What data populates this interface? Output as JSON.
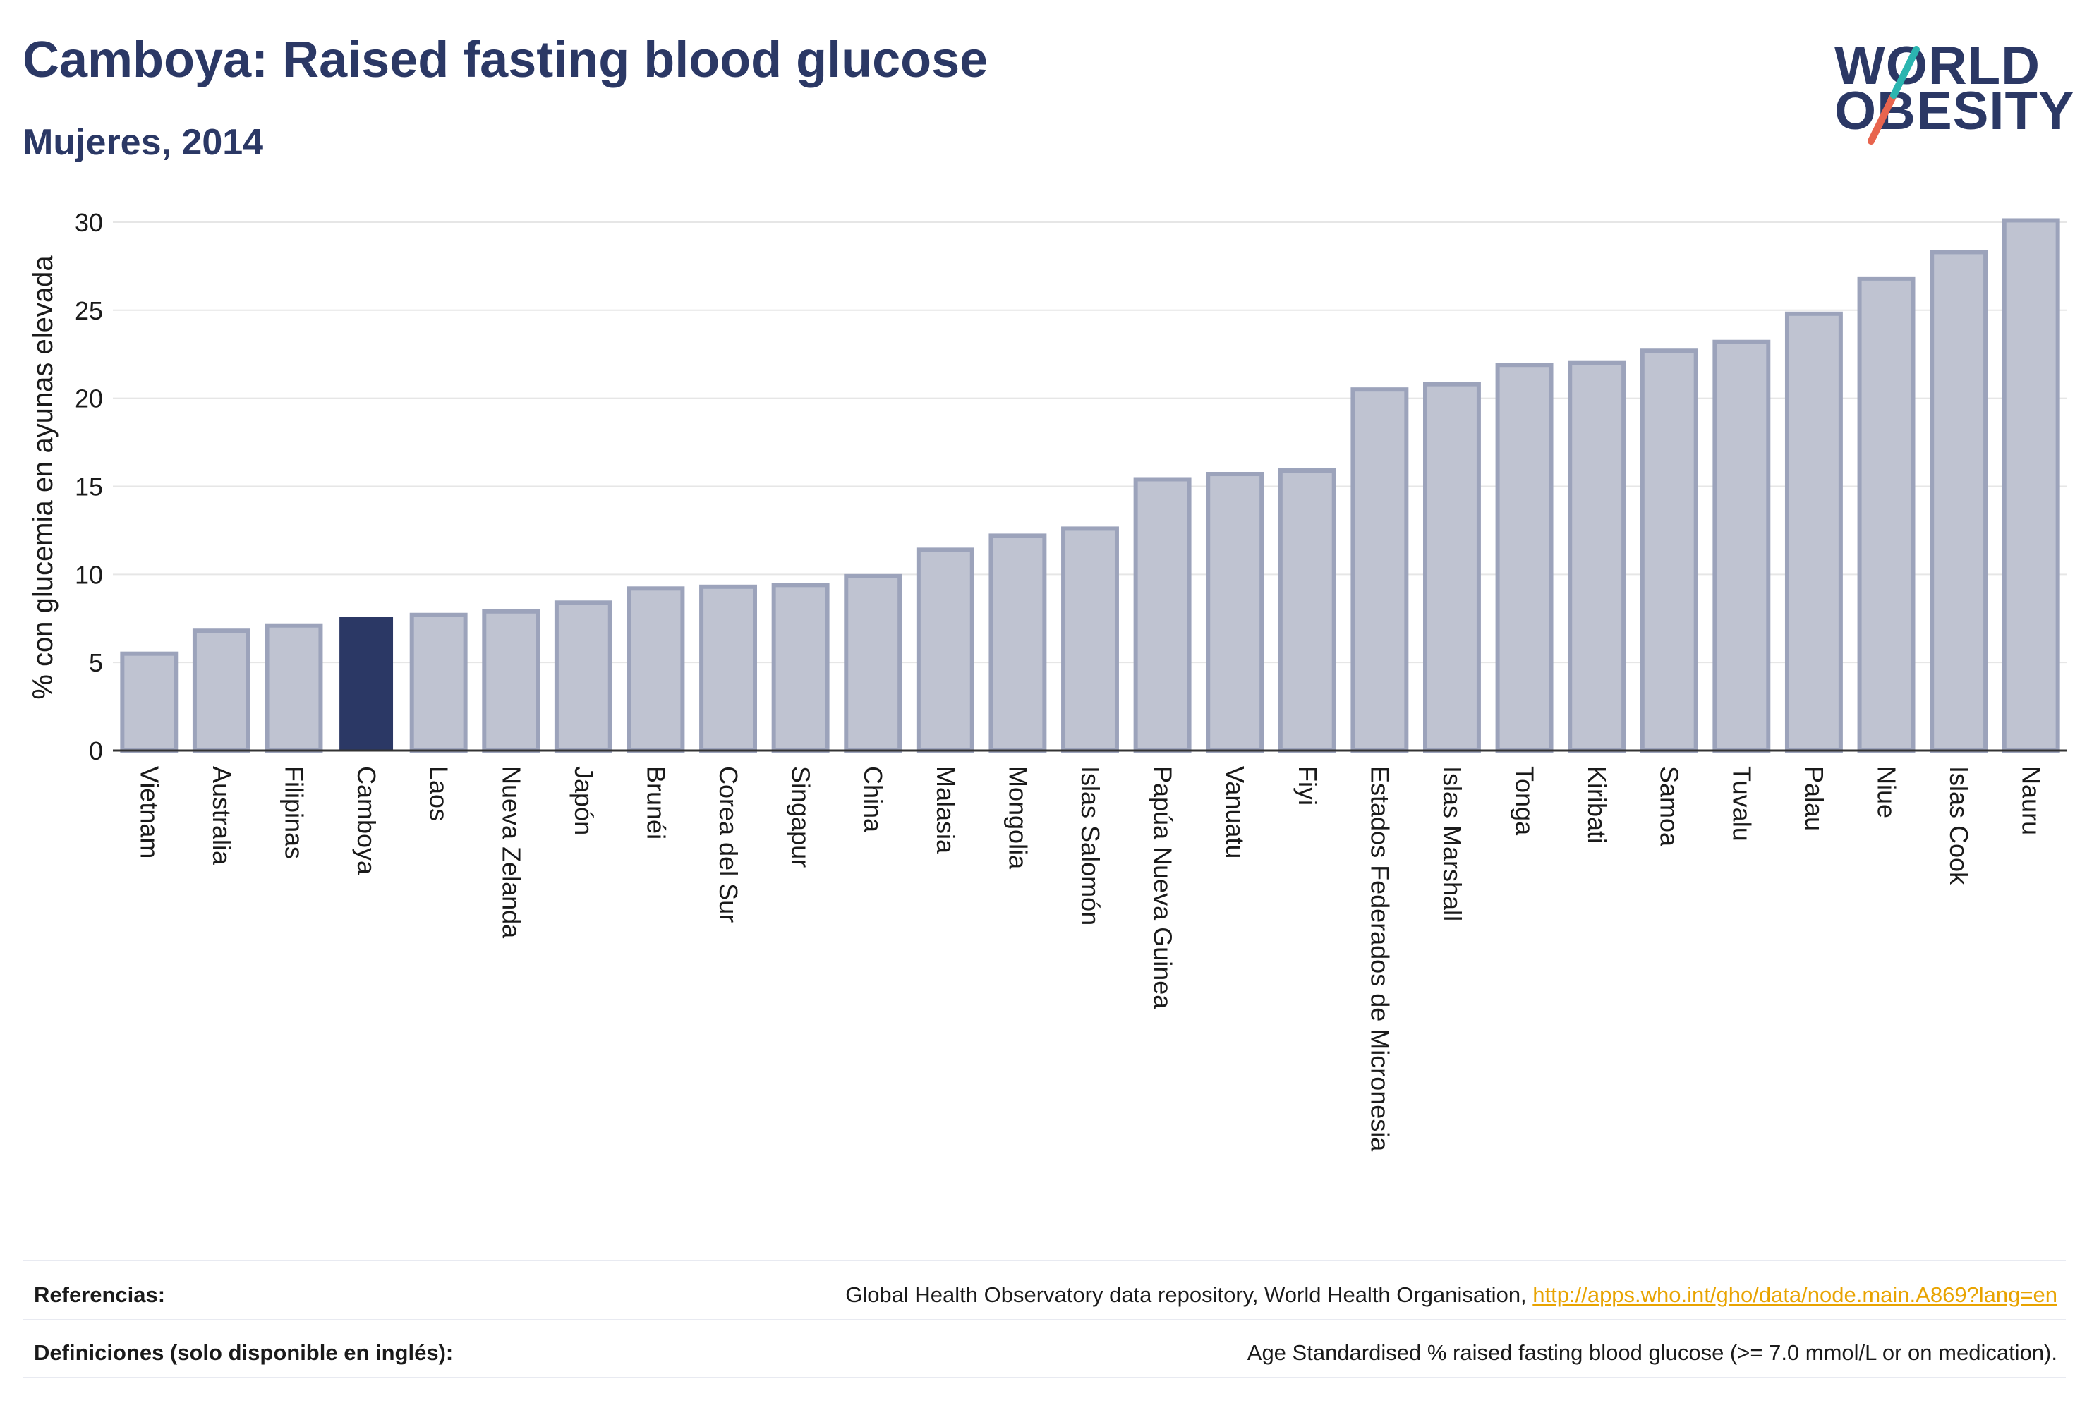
{
  "header": {
    "title": "Camboya: Raised fasting blood glucose",
    "subtitle": "Mujeres, 2014"
  },
  "logo": {
    "line1": "WORLD",
    "line2": "OBESITY",
    "colors": {
      "text": "#2b3865",
      "slash_top": "#2bb5b0",
      "slash_bottom": "#e8644e"
    }
  },
  "chart_data": {
    "type": "bar",
    "title": "",
    "xlabel": "",
    "ylabel": "% con glucemia en ayunas elevada",
    "ylim": [
      0,
      31
    ],
    "yticks": [
      0,
      5,
      10,
      15,
      20,
      25,
      30
    ],
    "grid": true,
    "highlight": "Camboya",
    "colors": {
      "bar": "#bfc3d1",
      "bar_border": "#9ca3bb",
      "highlight": "#2b3865"
    },
    "categories": [
      "Vietnam",
      "Australia",
      "Filipinas",
      "Camboya",
      "Laos",
      "Nueva Zelanda",
      "Japón",
      "Brunéi",
      "Corea del Sur",
      "Singapur",
      "China",
      "Malasia",
      "Mongolia",
      "Islas Salomón",
      "Papúa Nueva Guinea",
      "Vanuatu",
      "Fiyi",
      "Estados Federados de Micronesia",
      "Islas Marshall",
      "Tonga",
      "Kiribati",
      "Samoa",
      "Tuvalu",
      "Palau",
      "Niue",
      "Islas Cook",
      "Nauru"
    ],
    "values": [
      5.5,
      6.8,
      7.1,
      7.6,
      7.7,
      7.9,
      8.4,
      9.2,
      9.3,
      9.4,
      9.9,
      11.4,
      12.2,
      12.6,
      15.4,
      15.7,
      15.9,
      20.5,
      20.8,
      21.9,
      22.0,
      22.7,
      23.2,
      24.8,
      26.8,
      28.3,
      30.1
    ]
  },
  "footer": {
    "references_label": "Referencias:",
    "references_text": "Global Health Observatory data repository, World Health Organisation, ",
    "references_link": "http://apps.who.int/gho/data/node.main.A869?lang=en",
    "definitions_label": "Definiciones (solo disponible en inglés):",
    "definitions_text": "Age Standardised % raised fasting blood glucose (>= 7.0 mmol/L or on medication)."
  }
}
